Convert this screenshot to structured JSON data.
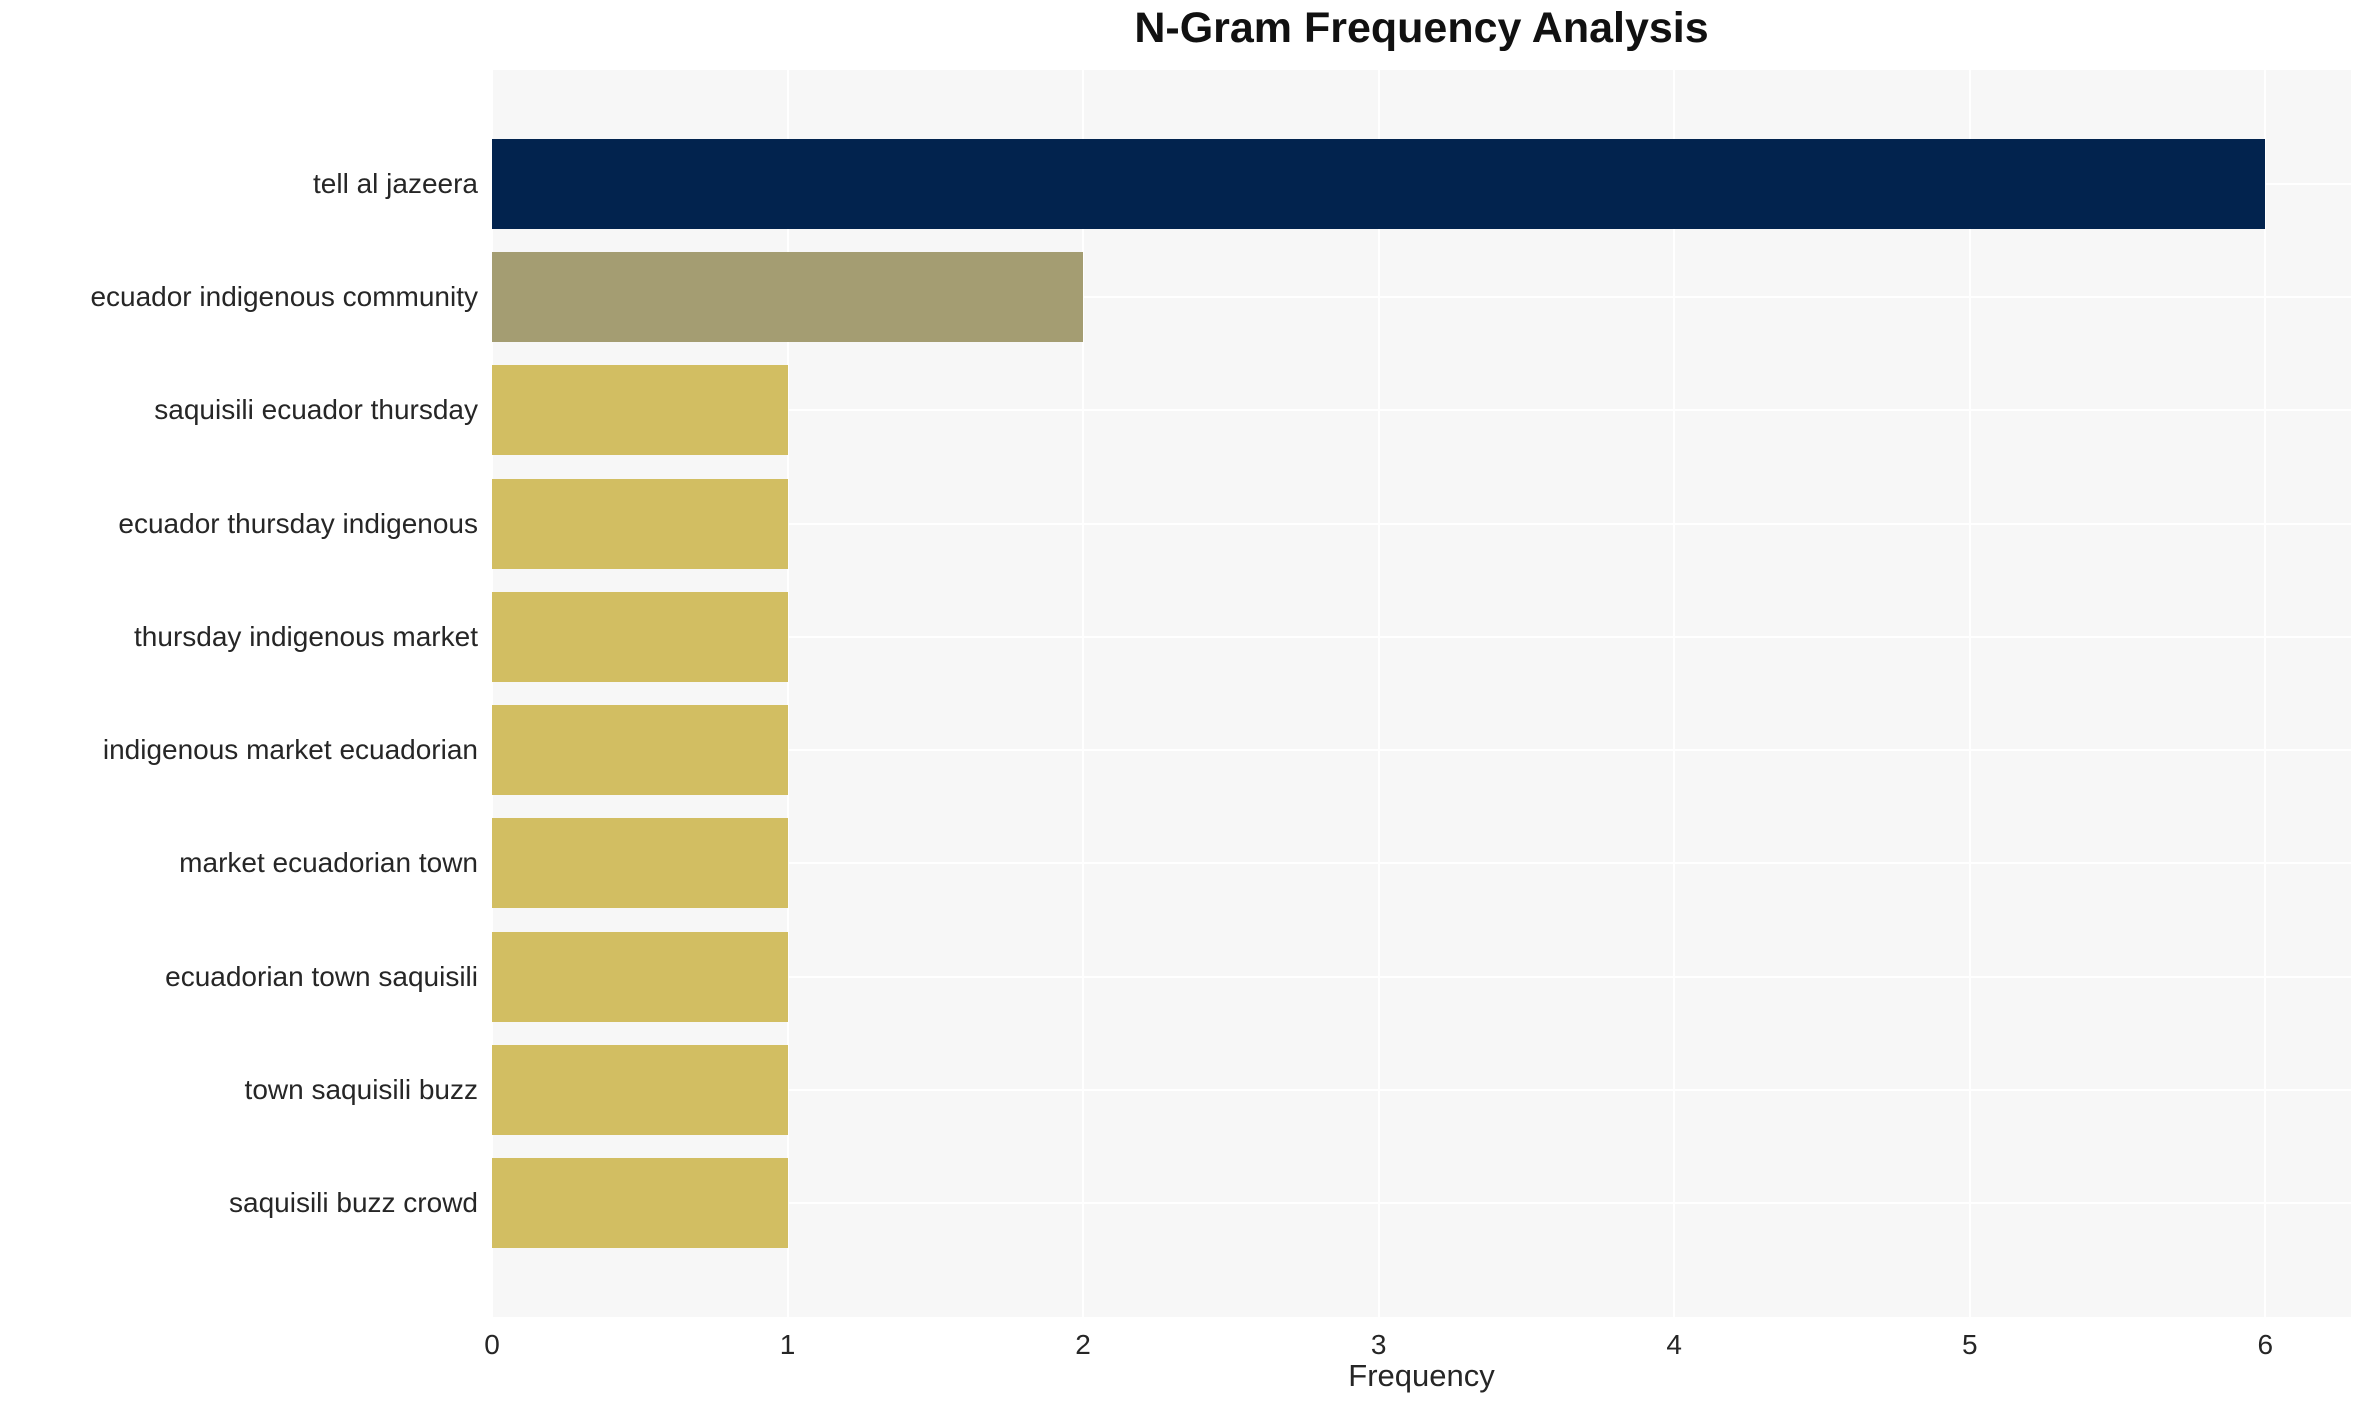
{
  "chart_data": {
    "type": "bar",
    "orientation": "horizontal",
    "title": "N-Gram Frequency Analysis",
    "xlabel": "Frequency",
    "categories": [
      "tell al jazeera",
      "ecuador indigenous community",
      "saquisili ecuador thursday",
      "ecuador thursday indigenous",
      "thursday indigenous market",
      "indigenous market ecuadorian",
      "market ecuadorian town",
      "ecuadorian town saquisili",
      "town saquisili buzz",
      "saquisili buzz crowd"
    ],
    "values": [
      6,
      2,
      1,
      1,
      1,
      1,
      1,
      1,
      1,
      1
    ],
    "xticks": [
      0,
      1,
      2,
      3,
      4,
      5,
      6
    ],
    "xlim": [
      0,
      6.29
    ],
    "grid": true,
    "legend": false,
    "colors": {
      "plot_background": "#f7f7f7",
      "grid": "#ffffff",
      "bars": [
        "#02234e",
        "#a49d72",
        "#d2be62",
        "#d2be62",
        "#d2be62",
        "#d2be62",
        "#d2be62",
        "#d2be62",
        "#d2be62",
        "#d2be62"
      ],
      "text": "#262626",
      "title": "#111111"
    }
  }
}
